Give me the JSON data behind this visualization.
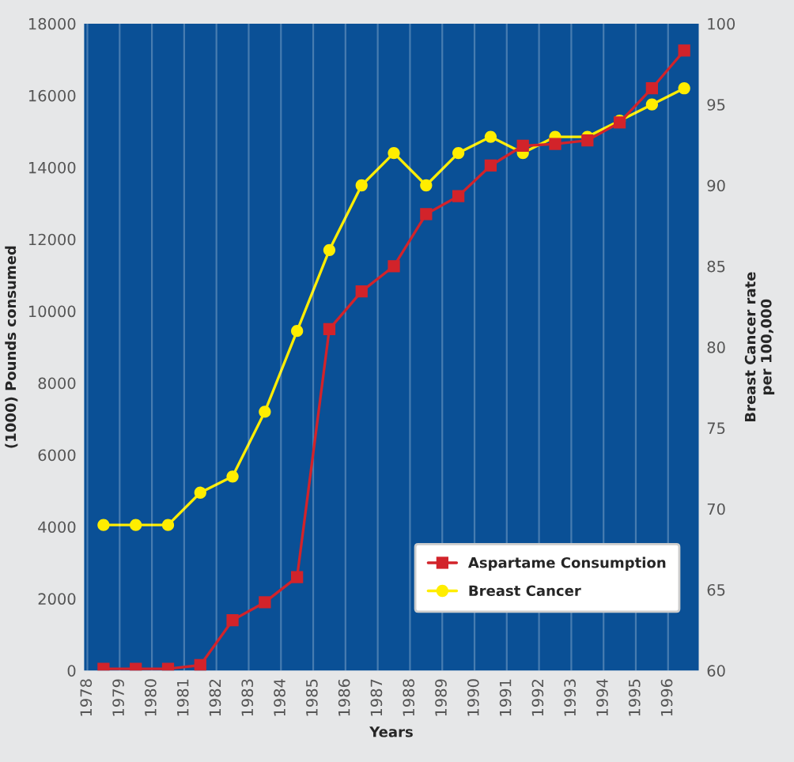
{
  "chart_data": {
    "type": "line",
    "xlabel": "Years",
    "ylabel": "(1000) Pounds consumed",
    "y2label": "Breast Cancer rate\nper 100,000",
    "x": [
      1978.5,
      1979.5,
      1980.5,
      1981.5,
      1982.5,
      1983.5,
      1984.5,
      1985.5,
      1986.5,
      1987.5,
      1988.5,
      1989.5,
      1990.5,
      1991.5,
      1992.5,
      1993.5,
      1994.5,
      1995.5,
      1996.5
    ],
    "series": [
      {
        "name": "Aspartame Consumption",
        "color": "#d2232a",
        "marker": "square",
        "values": [
          50,
          50,
          50,
          150,
          1400,
          1900,
          2600,
          9500,
          10550,
          11250,
          12700,
          13200,
          14050,
          14600,
          14650,
          14750,
          15250,
          16200,
          17250
        ]
      },
      {
        "name": "Breast Cancer",
        "color": "#ffed00",
        "marker": "circle",
        "axis": "y2",
        "values": [
          69,
          69,
          69,
          71,
          72,
          76,
          81,
          86,
          90,
          92,
          90,
          92,
          93,
          92,
          93,
          93,
          94,
          95,
          96
        ]
      }
    ],
    "xlim": [
      1977.9,
      1996.95
    ],
    "xticks": [
      1978,
      1979,
      1980,
      1981,
      1982,
      1983,
      1984,
      1985,
      1986,
      1987,
      1988,
      1989,
      1990,
      1991,
      1992,
      1993,
      1994,
      1995,
      1996
    ],
    "ylim": [
      0,
      18000
    ],
    "yticks": [
      0,
      2000,
      4000,
      6000,
      8000,
      10000,
      12000,
      14000,
      16000,
      18000
    ],
    "y2lim": [
      60,
      100
    ],
    "y2ticks": [
      60,
      65,
      70,
      75,
      80,
      85,
      90,
      95,
      100
    ],
    "grid": "x",
    "legend": "bottom right",
    "line_style": "solid"
  }
}
